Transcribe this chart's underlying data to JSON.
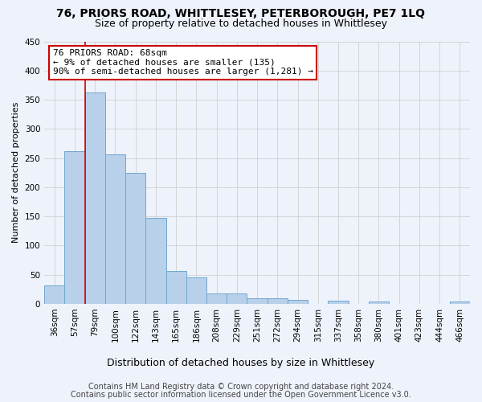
{
  "title1": "76, PRIORS ROAD, WHITTLESEY, PETERBOROUGH, PE7 1LQ",
  "title2": "Size of property relative to detached houses in Whittlesey",
  "xlabel": "Distribution of detached houses by size in Whittlesey",
  "ylabel": "Number of detached properties",
  "categories": [
    "36sqm",
    "57sqm",
    "79sqm",
    "100sqm",
    "122sqm",
    "143sqm",
    "165sqm",
    "186sqm",
    "208sqm",
    "229sqm",
    "251sqm",
    "272sqm",
    "294sqm",
    "315sqm",
    "337sqm",
    "358sqm",
    "380sqm",
    "401sqm",
    "423sqm",
    "444sqm",
    "466sqm"
  ],
  "values": [
    32,
    262,
    362,
    257,
    225,
    148,
    57,
    45,
    18,
    18,
    10,
    10,
    7,
    0,
    6,
    0,
    4,
    0,
    0,
    0,
    4
  ],
  "bar_color": "#b8d0ea",
  "bar_edge_color": "#6fa8d0",
  "vline_x": 1.5,
  "vline_color": "#cc0000",
  "annotation_line1": "76 PRIORS ROAD: 68sqm",
  "annotation_line2": "← 9% of detached houses are smaller (135)",
  "annotation_line3": "90% of semi-detached houses are larger (1,281) →",
  "annotation_box_color": "#ffffff",
  "annotation_box_edge_color": "#cc0000",
  "footer1": "Contains HM Land Registry data © Crown copyright and database right 2024.",
  "footer2": "Contains public sector information licensed under the Open Government Licence v3.0.",
  "bg_color": "#eef2fb",
  "grid_color": "#d0d0d0",
  "ylim": [
    0,
    450
  ],
  "yticks": [
    0,
    50,
    100,
    150,
    200,
    250,
    300,
    350,
    400,
    450
  ],
  "title1_fontsize": 10,
  "title2_fontsize": 9,
  "xlabel_fontsize": 9,
  "ylabel_fontsize": 8,
  "tick_fontsize": 7.5,
  "annotation_fontsize": 8,
  "footer_fontsize": 7
}
